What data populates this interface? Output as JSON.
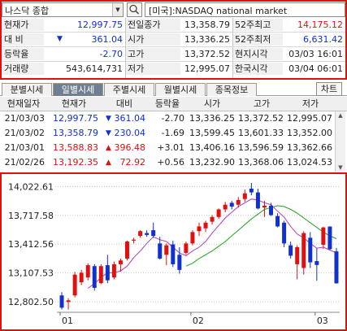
{
  "header": {
    "stock_select": "나스닥 종합",
    "market_name": "[미국]:NASDAQ national market"
  },
  "quote": {
    "rows": [
      [
        {
          "label": "현재가",
          "value": "12,997.75",
          "color": "#1030d0",
          "arrow": ""
        },
        {
          "label": "전일종가",
          "value": "13,358.79",
          "color": "",
          "arrow": ""
        },
        {
          "label": "52주최고",
          "value": "14,175.12",
          "color": "#e01010",
          "arrow": ""
        }
      ],
      [
        {
          "label": "대 비",
          "value": "361.04",
          "color": "#1030d0",
          "arrow": "▼"
        },
        {
          "label": "시가",
          "value": "13,336.25",
          "color": "",
          "arrow": ""
        },
        {
          "label": "52주최저",
          "value": "6,631.42",
          "color": "#1030d0",
          "arrow": ""
        }
      ],
      [
        {
          "label": "등락율",
          "value": "-2.70",
          "color": "#1030d0",
          "arrow": ""
        },
        {
          "label": "고가",
          "value": "13,372.52",
          "color": "",
          "arrow": ""
        },
        {
          "label": "현지시각",
          "value": "03/03 16:01",
          "color": "",
          "arrow": ""
        }
      ],
      [
        {
          "label": "거래량",
          "value": "543,614,731",
          "color": "",
          "arrow": ""
        },
        {
          "label": "저가",
          "value": "12,995.07",
          "color": "",
          "arrow": ""
        },
        {
          "label": "한국시각",
          "value": "03/04 06:01",
          "color": "",
          "arrow": ""
        }
      ]
    ]
  },
  "tabs": {
    "items": [
      "분별시세",
      "일별시세",
      "주별시세",
      "월별시세",
      "종목정보"
    ],
    "active": 1,
    "chart_button": "차트"
  },
  "grid": {
    "headers": [
      "현재일자",
      "현재가",
      "대비",
      "등락율",
      "시가",
      "고가",
      "저가"
    ],
    "rows": [
      {
        "date": "21/03/03",
        "price": "12,997.75",
        "arrow": "▼",
        "change": "361.04",
        "rate": "-2.70",
        "open": "13,336.25",
        "high": "13,372.52",
        "low": "12,995.07",
        "dir": "down"
      },
      {
        "date": "21/03/02",
        "price": "13,358.79",
        "arrow": "▼",
        "change": "230.04",
        "rate": "-1.69",
        "open": "13,599.45",
        "high": "13,601.33",
        "low": "13,352.00",
        "dir": "down"
      },
      {
        "date": "21/03/01",
        "price": "13,588.83",
        "arrow": "▲",
        "change": "396.48",
        "rate": "+3.01",
        "open": "13,406.16",
        "high": "13,596.59",
        "low": "13,362.66",
        "dir": "up"
      },
      {
        "date": "21/02/26",
        "price": "13,192.35",
        "arrow": "▲",
        "change": "72.92",
        "rate": "+0.56",
        "open": "13,232.90",
        "high": "13,368.06",
        "low": "13,024.53",
        "dir": "up"
      }
    ]
  },
  "chart_data": {
    "type": "candlestick",
    "y_ticks": [
      "14,022.61",
      "13,717.58",
      "13,412.56",
      "13,107.53",
      "12,802.50"
    ],
    "y_tick_values": [
      14022.61,
      13717.58,
      13412.56,
      13107.53,
      12802.5
    ],
    "ylim": [
      12700,
      14120
    ],
    "x_ticks": [
      {
        "label": "01",
        "index": 0
      },
      {
        "label": "02",
        "index": 20
      },
      {
        "label": "03",
        "index": 39
      }
    ],
    "up_color": "#e01010",
    "down_color": "#1030d0",
    "ma_colors": [
      "#b040c0",
      "#20a020"
    ],
    "candles": [
      {
        "o": 12870,
        "h": 12905,
        "l": 12720,
        "c": 12740
      },
      {
        "o": 12800,
        "h": 12840,
        "l": 12720,
        "c": 12818
      },
      {
        "o": 12870,
        "h": 13120,
        "l": 12850,
        "c": 13090
      },
      {
        "o": 13010,
        "h": 13140,
        "l": 12980,
        "c": 13110
      },
      {
        "o": 13060,
        "h": 13210,
        "l": 13030,
        "c": 13190
      },
      {
        "o": 13180,
        "h": 13200,
        "l": 12920,
        "c": 12950
      },
      {
        "o": 13000,
        "h": 13200,
        "l": 12990,
        "c": 13180
      },
      {
        "o": 13190,
        "h": 13300,
        "l": 13000,
        "c": 13030
      },
      {
        "o": 13060,
        "h": 13230,
        "l": 13040,
        "c": 13200
      },
      {
        "o": 13200,
        "h": 13260,
        "l": 13120,
        "c": 13240
      },
      {
        "o": 13260,
        "h": 13450,
        "l": 13240,
        "c": 13440
      },
      {
        "o": 13450,
        "h": 13480,
        "l": 13420,
        "c": 13460
      },
      {
        "o": 13500,
        "h": 13560,
        "l": 13480,
        "c": 13550
      },
      {
        "o": 13530,
        "h": 13560,
        "l": 13490,
        "c": 13510
      },
      {
        "o": 13560,
        "h": 13640,
        "l": 13480,
        "c": 13500
      },
      {
        "o": 13420,
        "h": 13490,
        "l": 13250,
        "c": 13260
      },
      {
        "o": 13300,
        "h": 13420,
        "l": 13190,
        "c": 13400
      },
      {
        "o": 13410,
        "h": 13450,
        "l": 13170,
        "c": 13200
      },
      {
        "o": 13300,
        "h": 13380,
        "l": 13100,
        "c": 13140
      },
      {
        "o": 13320,
        "h": 13440,
        "l": 13300,
        "c": 13420
      },
      {
        "o": 13420,
        "h": 13560,
        "l": 13400,
        "c": 13540
      },
      {
        "o": 13550,
        "h": 13640,
        "l": 13500,
        "c": 13600
      },
      {
        "o": 13580,
        "h": 13660,
        "l": 13540,
        "c": 13640
      },
      {
        "o": 13650,
        "h": 13720,
        "l": 13620,
        "c": 13700
      },
      {
        "o": 13700,
        "h": 13790,
        "l": 13680,
        "c": 13780
      },
      {
        "o": 13780,
        "h": 13860,
        "l": 13750,
        "c": 13830
      },
      {
        "o": 13850,
        "h": 13870,
        "l": 13780,
        "c": 13810
      },
      {
        "o": 13830,
        "h": 13910,
        "l": 13800,
        "c": 13880
      },
      {
        "o": 13890,
        "h": 13990,
        "l": 13860,
        "c": 13950
      },
      {
        "o": 14000,
        "h": 14060,
        "l": 13930,
        "c": 13960
      },
      {
        "o": 13960,
        "h": 14000,
        "l": 13780,
        "c": 13790
      },
      {
        "o": 13800,
        "h": 13870,
        "l": 13700,
        "c": 13820
      },
      {
        "o": 13820,
        "h": 13850,
        "l": 13710,
        "c": 13720
      },
      {
        "o": 13710,
        "h": 13740,
        "l": 13590,
        "c": 13600
      },
      {
        "o": 13640,
        "h": 13660,
        "l": 13380,
        "c": 13420
      },
      {
        "o": 13400,
        "h": 13440,
        "l": 13260,
        "c": 13290
      },
      {
        "o": 13200,
        "h": 13400,
        "l": 13040,
        "c": 13380
      },
      {
        "o": 13160,
        "h": 13550,
        "l": 13090,
        "c": 13530
      },
      {
        "o": 13480,
        "h": 13540,
        "l": 13160,
        "c": 13220
      },
      {
        "o": 13233,
        "h": 13368,
        "l": 13025,
        "c": 13192
      },
      {
        "o": 13406,
        "h": 13597,
        "l": 13363,
        "c": 13589
      },
      {
        "o": 13599,
        "h": 13601,
        "l": 13352,
        "c": 13359
      },
      {
        "o": 13336,
        "h": 13373,
        "l": 12995,
        "c": 12998
      }
    ],
    "ma_short": [
      null,
      null,
      null,
      null,
      12945,
      12995,
      13060,
      13110,
      13110,
      13130,
      13180,
      13270,
      13340,
      13420,
      13490,
      13460,
      13440,
      13380,
      13320,
      13290,
      13340,
      13380,
      13440,
      13530,
      13610,
      13690,
      13750,
      13810,
      13850,
      13890,
      13880,
      13850,
      13830,
      13760,
      13700,
      13600,
      13520,
      13480,
      13420,
      13370,
      13380,
      13350,
      13320
    ],
    "ma_long": [
      null,
      null,
      null,
      null,
      null,
      null,
      null,
      null,
      null,
      null,
      null,
      null,
      null,
      null,
      null,
      null,
      null,
      null,
      null,
      13180,
      13210,
      13260,
      13300,
      13340,
      13390,
      13440,
      13500,
      13560,
      13620,
      13680,
      13730,
      13780,
      13800,
      13820,
      13810,
      13780,
      13740,
      13690,
      13640,
      13590,
      13540,
      13500,
      13470
    ]
  }
}
